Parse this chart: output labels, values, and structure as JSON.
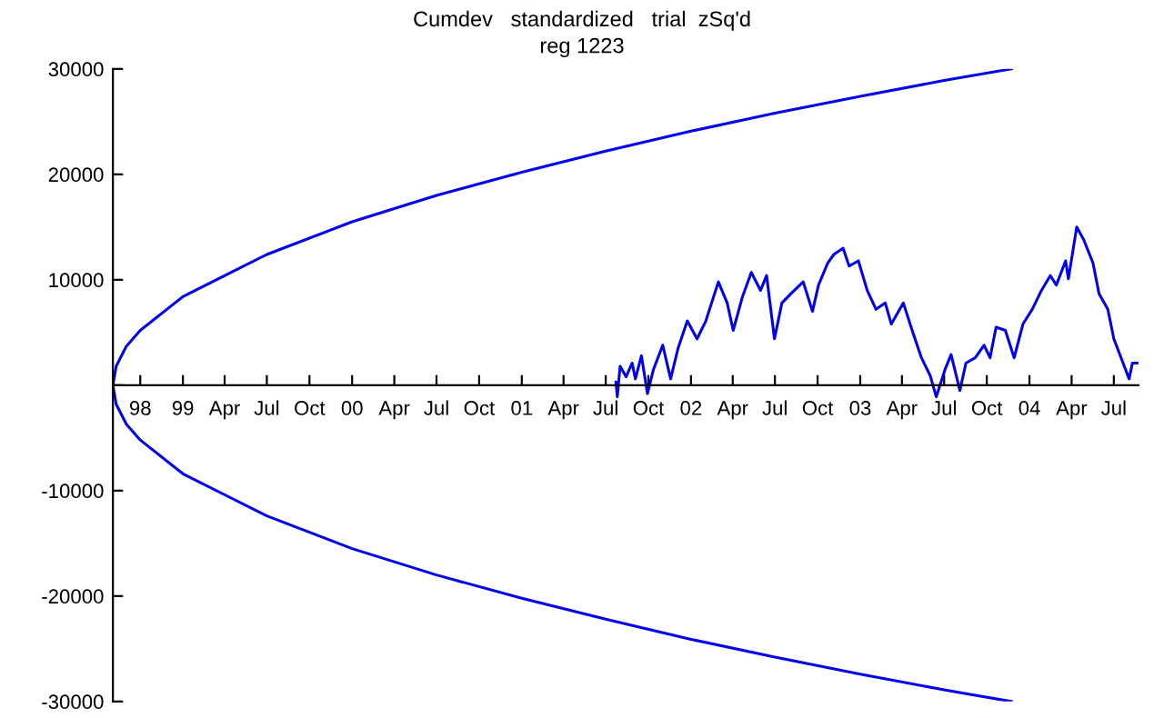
{
  "chart_data": {
    "type": "line",
    "title": "Cumdev   standardized   trial  zSq'd",
    "subtitle": "reg 1223",
    "xlim": [
      "1998-08-03",
      "2004-08-23"
    ],
    "xticks": [
      {
        "value": "1998-10-01",
        "label": "98"
      },
      {
        "value": "1999-01-01",
        "label": "99"
      },
      {
        "value": "1999-04-01",
        "label": "Apr"
      },
      {
        "value": "1999-07-01",
        "label": "Jul"
      },
      {
        "value": "1999-10-01",
        "label": "Oct"
      },
      {
        "value": "2000-01-01",
        "label": "00"
      },
      {
        "value": "2000-04-01",
        "label": "Apr"
      },
      {
        "value": "2000-07-01",
        "label": "Jul"
      },
      {
        "value": "2000-10-01",
        "label": "Oct"
      },
      {
        "value": "2001-01-01",
        "label": "01"
      },
      {
        "value": "2001-04-01",
        "label": "Apr"
      },
      {
        "value": "2001-07-01",
        "label": "Jul"
      },
      {
        "value": "2001-10-01",
        "label": "Oct"
      },
      {
        "value": "2002-01-01",
        "label": "02"
      },
      {
        "value": "2002-04-01",
        "label": "Apr"
      },
      {
        "value": "2002-07-01",
        "label": "Jul"
      },
      {
        "value": "2002-10-01",
        "label": "Oct"
      },
      {
        "value": "2003-01-01",
        "label": "03"
      },
      {
        "value": "2003-04-01",
        "label": "Apr"
      },
      {
        "value": "2003-07-01",
        "label": "Jul"
      },
      {
        "value": "2003-10-01",
        "label": "Oct"
      },
      {
        "value": "2004-01-01",
        "label": "04"
      },
      {
        "value": "2004-04-01",
        "label": "Apr"
      },
      {
        "value": "2004-07-01",
        "label": "Jul"
      }
    ],
    "ylim": [
      -30000,
      30000
    ],
    "yticks": [
      -30000,
      -20000,
      -10000,
      {
        "value": 0,
        "label": null
      },
      10000,
      20000,
      30000
    ],
    "grid": false,
    "legend": false,
    "marker": "none",
    "line_style": "solid",
    "series": [
      {
        "color": "#0000ee",
        "x": [
          "2003-11-23",
          "2003-07-01",
          "2003-01-01",
          "2002-07-01",
          "2002-01-01",
          "2001-07-01",
          "2001-01-01",
          "2000-07-01",
          "2000-01-01",
          "1999-07-01",
          "1999-01-01",
          "1998-10-01",
          "1998-09-01",
          "1998-08-10",
          "1998-08-03",
          "1998-08-10",
          "1998-09-01",
          "1998-10-01",
          "1999-01-01",
          "1999-07-01",
          "2000-01-01",
          "2000-07-01",
          "2001-01-01",
          "2001-07-01",
          "2002-01-01",
          "2002-07-01",
          "2003-01-01",
          "2003-07-01",
          "2003-11-23"
        ],
        "values": [
          -30000,
          -28900,
          -27400,
          -25800,
          -24100,
          -22200,
          -20200,
          -18000,
          -15500,
          -12400,
          -8400,
          -5200,
          -3700,
          -1800,
          0,
          1800,
          3700,
          5200,
          8400,
          12400,
          15500,
          18000,
          20200,
          22200,
          24100,
          25800,
          27400,
          28900,
          30000
        ]
      },
      {
        "color": "#0000ee",
        "x": [
          "2001-07-23",
          "2001-07-26",
          "2001-08-01",
          "2001-08-14",
          "2001-08-27",
          "2001-09-03",
          "2001-09-16",
          "2001-09-29",
          "2001-10-12",
          "2001-11-01",
          "2001-11-18",
          "2001-12-04",
          "2001-12-24",
          "2002-01-14",
          "2002-02-02",
          "2002-03-01",
          "2002-03-20",
          "2002-04-02",
          "2002-04-22",
          "2002-05-11",
          "2002-05-31",
          "2002-06-13",
          "2002-06-30",
          "2002-07-16",
          "2002-08-05",
          "2002-08-31",
          "2002-09-20",
          "2002-10-03",
          "2002-10-23",
          "2002-11-05",
          "2002-11-25",
          "2002-12-08",
          "2002-12-28",
          "2003-01-16",
          "2003-02-04",
          "2003-02-24",
          "2003-03-09",
          "2003-04-04",
          "2003-04-23",
          "2003-05-13",
          "2003-06-01",
          "2003-06-14",
          "2003-07-03",
          "2003-07-16",
          "2003-08-04",
          "2003-08-17",
          "2003-09-06",
          "2003-09-25",
          "2003-10-08",
          "2003-10-21",
          "2003-11-10",
          "2003-11-29",
          "2003-12-18",
          "2004-01-07",
          "2004-01-27",
          "2004-02-15",
          "2004-02-28",
          "2004-03-19",
          "2004-03-25",
          "2004-04-12",
          "2004-04-27",
          "2004-05-17",
          "2004-05-30",
          "2004-06-18",
          "2004-07-01",
          "2004-07-21",
          "2004-08-03",
          "2004-08-10",
          "2004-08-23"
        ],
        "values": [
          300,
          -1100,
          1800,
          800,
          2100,
          600,
          2800,
          -800,
          1500,
          3800,
          600,
          3500,
          6100,
          4400,
          6100,
          9800,
          7800,
          5200,
          8400,
          10700,
          9000,
          10400,
          4400,
          7800,
          8700,
          9800,
          7000,
          9500,
          11600,
          12400,
          13000,
          11300,
          11800,
          9000,
          7200,
          7800,
          5800,
          7800,
          5200,
          2600,
          900,
          -1100,
          1500,
          2900,
          -500,
          2100,
          2600,
          3800,
          2600,
          5500,
          5200,
          2600,
          5800,
          7200,
          9000,
          10400,
          9500,
          11800,
          10100,
          15000,
          13800,
          11600,
          8700,
          7200,
          4400,
          2100,
          600,
          2100,
          2100
        ]
      }
    ]
  }
}
